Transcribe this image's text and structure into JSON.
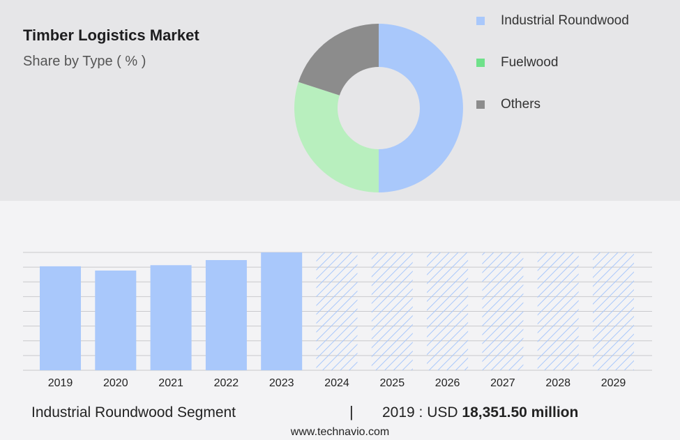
{
  "header": {
    "title": "Timber Logistics Market",
    "subtitle": "Share by Type ( % )"
  },
  "colors": {
    "industrial": "#a9c8fb",
    "fuelwood": "#b8efbe",
    "others": "#8c8c8c",
    "legend_fuelwood": "#6fe18a",
    "hatch": "#a9c8fb"
  },
  "chart_data": [
    {
      "type": "pie",
      "variant": "donut",
      "title": "",
      "categories": [
        "Industrial Roundwood",
        "Fuelwood",
        "Others"
      ],
      "values": [
        50,
        30,
        20
      ],
      "legend_placement": "right"
    },
    {
      "type": "bar",
      "title": "",
      "xlabel": "",
      "ylabel": "",
      "categories": [
        "2019",
        "2020",
        "2021",
        "2022",
        "2023",
        "2024",
        "2025",
        "2026",
        "2027",
        "2028",
        "2029"
      ],
      "values": [
        18351.5,
        17600,
        18550,
        19450,
        20800,
        null,
        null,
        null,
        null,
        null,
        null
      ],
      "forecast_years": [
        "2024",
        "2025",
        "2026",
        "2027",
        "2028",
        "2029"
      ],
      "ylim": [
        0,
        20800
      ],
      "grid": true,
      "axis_labels_visible": false
    }
  ],
  "footer": {
    "segment_label": "Industrial Roundwood Segment",
    "separator": "|",
    "stat_prefix": "2019 : USD",
    "stat_value": "18,351.50 million",
    "website": "www.technavio.com"
  }
}
